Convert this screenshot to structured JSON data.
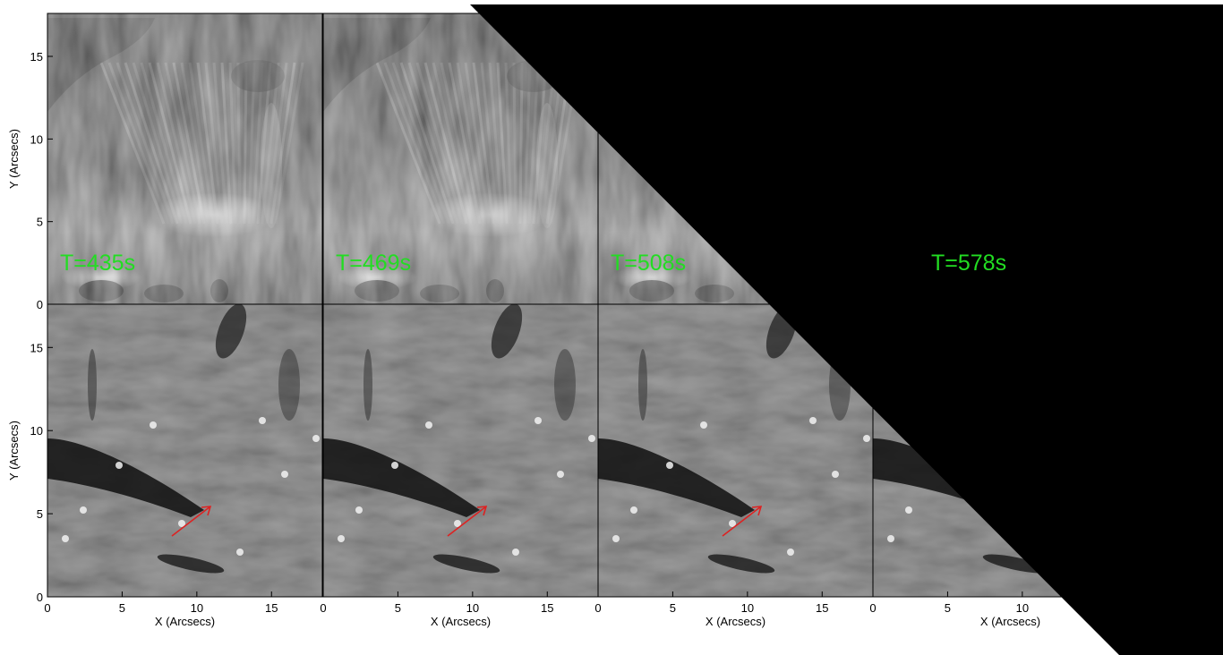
{
  "figure": {
    "x_axis_title": "X (Arcsecs)",
    "y_axis_title": "Y (Arcsecs)",
    "x_tick_labels": [
      "0",
      "5",
      "10",
      "15"
    ],
    "y_tick_labels": [
      "0",
      "5",
      "10",
      "15"
    ],
    "time_labels": [
      "T=435s",
      "T=469s",
      "T=508s",
      "T=578s"
    ],
    "colors": {
      "time_label": "#22dd22",
      "arrow": "#dd2222",
      "mask": "#000000"
    },
    "arrow_present_in_bottom_panels": [
      true,
      true,
      true,
      false
    ]
  }
}
